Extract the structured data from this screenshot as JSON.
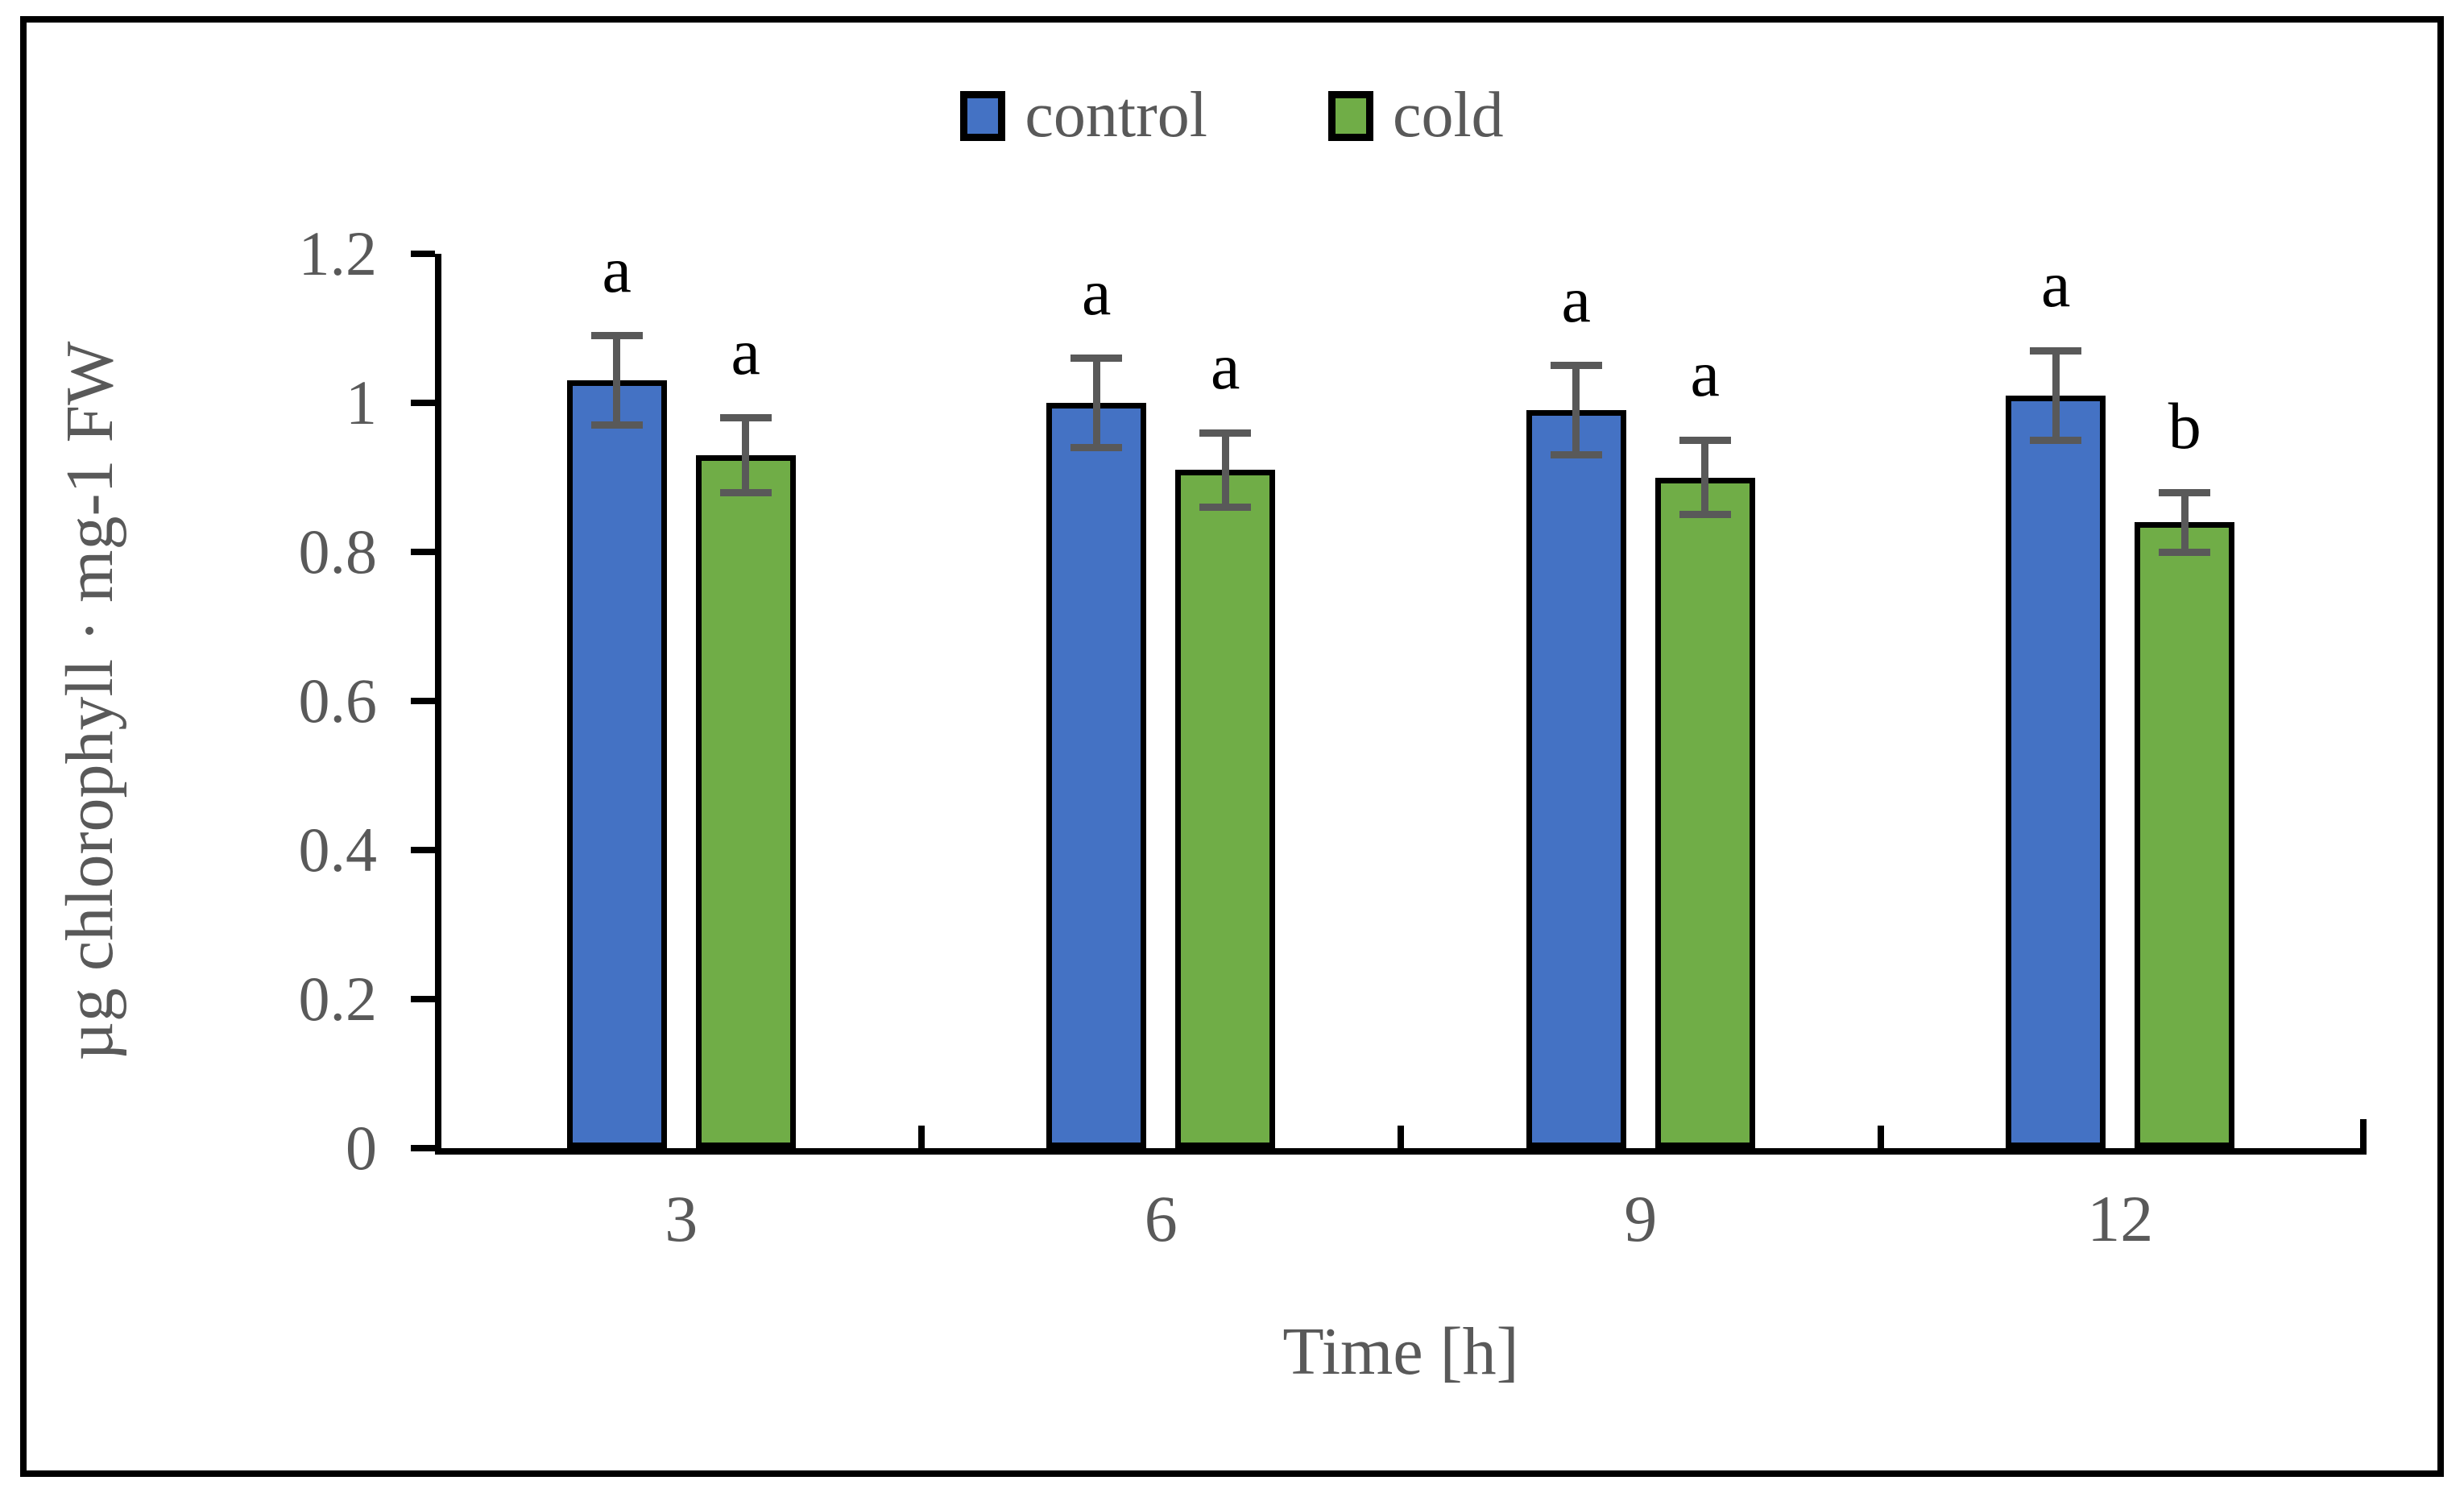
{
  "legend": {
    "items": [
      {
        "label": "control",
        "color": "#4472C4"
      },
      {
        "label": "cold",
        "color": "#70AD47"
      }
    ]
  },
  "chart_data": {
    "type": "bar",
    "title": "",
    "categories": [
      "3",
      "6",
      "9",
      "12"
    ],
    "xlabel": "Time [h]",
    "ylabel": "µg chlorophyll · mg-1 FW",
    "ylim": [
      0,
      1.2
    ],
    "ytick_step": 0.2,
    "yticks": [
      "0",
      "0.2",
      "0.4",
      "0.6",
      "0.8",
      "1",
      "1.2"
    ],
    "grid": false,
    "legend_position": "top-center",
    "series": [
      {
        "name": "control",
        "color": "#4472C4",
        "values": [
          1.03,
          1.0,
          0.99,
          1.01
        ],
        "errors": [
          0.06,
          0.06,
          0.06,
          0.06
        ],
        "sig_letters": [
          "a",
          "a",
          "a",
          "a"
        ]
      },
      {
        "name": "cold",
        "color": "#70AD47",
        "values": [
          0.93,
          0.91,
          0.9,
          0.84
        ],
        "errors": [
          0.05,
          0.05,
          0.05,
          0.04
        ],
        "sig_letters": [
          "a",
          "a",
          "a",
          "b"
        ]
      }
    ],
    "bar_border_color": "#000000",
    "error_bar_color": "#595959",
    "axis_color": "#000000",
    "text_color": "#595959",
    "letter_color": "#000000"
  }
}
